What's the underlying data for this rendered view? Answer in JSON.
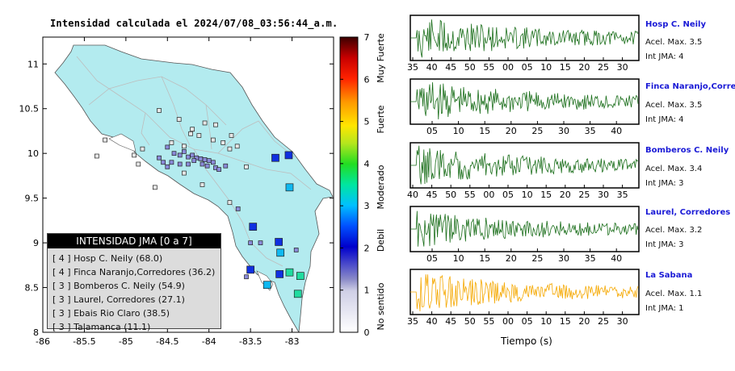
{
  "title": "Intensidad calculada el 2024/07/08_03:56:44_a.m.",
  "map": {
    "xticks": [
      "-86",
      "-85.5",
      "-85",
      "-84.5",
      "-84",
      "-83.5",
      "-83"
    ],
    "yticks": [
      "11",
      "10.5",
      "10",
      "9.5",
      "9",
      "8.5",
      "8"
    ],
    "xlim": [
      -86,
      -82.5
    ],
    "ylim": [
      8,
      11.3
    ],
    "land_color": "#b3ebef",
    "stations": [
      {
        "lon": -84.6,
        "lat": 10.48,
        "c": 0
      },
      {
        "lon": -84.36,
        "lat": 10.38,
        "c": 0
      },
      {
        "lon": -84.05,
        "lat": 10.34,
        "c": 0
      },
      {
        "lon": -83.92,
        "lat": 10.32,
        "c": 0
      },
      {
        "lon": -84.2,
        "lat": 10.27,
        "c": 0
      },
      {
        "lon": -84.22,
        "lat": 10.22,
        "c": 0
      },
      {
        "lon": -84.12,
        "lat": 10.2,
        "c": 0
      },
      {
        "lon": -83.95,
        "lat": 10.15,
        "c": 0
      },
      {
        "lon": -84.45,
        "lat": 10.12,
        "c": 0
      },
      {
        "lon": -84.3,
        "lat": 10.08,
        "c": 0
      },
      {
        "lon": -83.83,
        "lat": 10.12,
        "c": 0
      },
      {
        "lon": -83.73,
        "lat": 10.2,
        "c": 0
      },
      {
        "lon": -83.75,
        "lat": 10.05,
        "c": 0
      },
      {
        "lon": -83.66,
        "lat": 10.08,
        "c": 0
      },
      {
        "lon": -84.8,
        "lat": 10.05,
        "c": 0
      },
      {
        "lon": -85.25,
        "lat": 10.15,
        "c": 0
      },
      {
        "lon": -84.5,
        "lat": 10.07,
        "c": 1
      },
      {
        "lon": -84.42,
        "lat": 10.0,
        "c": 1
      },
      {
        "lon": -84.35,
        "lat": 9.98,
        "c": 1
      },
      {
        "lon": -84.3,
        "lat": 10.02,
        "c": 1
      },
      {
        "lon": -84.25,
        "lat": 9.96,
        "c": 1
      },
      {
        "lon": -84.2,
        "lat": 9.98,
        "c": 1
      },
      {
        "lon": -84.15,
        "lat": 9.95,
        "c": 1
      },
      {
        "lon": -84.1,
        "lat": 9.94,
        "c": 1
      },
      {
        "lon": -84.05,
        "lat": 9.93,
        "c": 1
      },
      {
        "lon": -84.0,
        "lat": 9.92,
        "c": 1
      },
      {
        "lon": -83.95,
        "lat": 9.9,
        "c": 1
      },
      {
        "lon": -84.08,
        "lat": 9.88,
        "c": 1
      },
      {
        "lon": -84.02,
        "lat": 9.86,
        "c": 1
      },
      {
        "lon": -84.18,
        "lat": 9.92,
        "c": 1
      },
      {
        "lon": -84.25,
        "lat": 9.88,
        "c": 1
      },
      {
        "lon": -84.35,
        "lat": 9.88,
        "c": 1
      },
      {
        "lon": -84.45,
        "lat": 9.9,
        "c": 1
      },
      {
        "lon": -83.92,
        "lat": 9.84,
        "c": 1
      },
      {
        "lon": -83.88,
        "lat": 9.82,
        "c": 1
      },
      {
        "lon": -83.8,
        "lat": 9.86,
        "c": 1
      },
      {
        "lon": -84.6,
        "lat": 9.95,
        "c": 1
      },
      {
        "lon": -84.55,
        "lat": 9.9,
        "c": 1
      },
      {
        "lon": -84.5,
        "lat": 9.85,
        "c": 1
      },
      {
        "lon": -84.85,
        "lat": 9.88,
        "c": 0
      },
      {
        "lon": -84.9,
        "lat": 9.98,
        "c": 0
      },
      {
        "lon": -85.35,
        "lat": 9.97,
        "c": 0
      },
      {
        "lon": -84.65,
        "lat": 9.62,
        "c": 0
      },
      {
        "lon": -84.08,
        "lat": 9.65,
        "c": 0
      },
      {
        "lon": -83.2,
        "lat": 9.95,
        "c": 2
      },
      {
        "lon": -83.04,
        "lat": 9.98,
        "c": 2
      },
      {
        "lon": -83.03,
        "lat": 9.62,
        "c": 3
      },
      {
        "lon": -83.55,
        "lat": 9.85,
        "c": 0
      },
      {
        "lon": -84.3,
        "lat": 9.78,
        "c": 0
      },
      {
        "lon": -83.65,
        "lat": 9.38,
        "c": 1
      },
      {
        "lon": -83.75,
        "lat": 9.45,
        "c": 0
      },
      {
        "lon": -83.47,
        "lat": 9.18,
        "c": 2
      },
      {
        "lon": -83.5,
        "lat": 9.0,
        "c": 1
      },
      {
        "lon": -83.38,
        "lat": 9.0,
        "c": 1
      },
      {
        "lon": -83.16,
        "lat": 9.01,
        "c": 2
      },
      {
        "lon": -83.14,
        "lat": 8.89,
        "c": 3
      },
      {
        "lon": -82.95,
        "lat": 8.92,
        "c": 1
      },
      {
        "lon": -83.5,
        "lat": 8.7,
        "c": 2
      },
      {
        "lon": -83.15,
        "lat": 8.65,
        "c": 2
      },
      {
        "lon": -83.03,
        "lat": 8.67,
        "c": 4
      },
      {
        "lon": -82.9,
        "lat": 8.63,
        "c": 4
      },
      {
        "lon": -83.3,
        "lat": 8.53,
        "c": 3
      },
      {
        "lon": -82.93,
        "lat": 8.43,
        "c": 4
      },
      {
        "lon": -83.55,
        "lat": 8.62,
        "c": 1
      }
    ]
  },
  "colorbar": {
    "ticks": [
      "0",
      "1",
      "2",
      "3",
      "4",
      "5",
      "6",
      "7"
    ],
    "labels": [
      "No sentido",
      "Debil",
      "Moderado",
      "Fuerte",
      "Muy Fuerte"
    ]
  },
  "legend": {
    "header": "INTENSIDAD JMA [0 a 7]",
    "rows": [
      "[ 4 ]  Hosp C. Neily (68.0)",
      "[ 4 ]  Finca Naranjo,Corredores (36.2)",
      "[ 3 ]  Bomberos C. Neily (54.9)",
      "[ 3 ]  Laurel, Corredores (27.1)",
      "[ 3 ]  Ebais Rio Claro (38.5)",
      "[ 3 ]  Talamanca (11.1)"
    ]
  },
  "chart_data": [
    {
      "type": "map",
      "title": "Intensidad calculada el 2024/07/08_03:56:44_a.m.",
      "xlim": [
        -86,
        -82.5
      ],
      "ylim": [
        8,
        11.3
      ],
      "colorbar": {
        "range": [
          0,
          7
        ],
        "labels": [
          "No sentido",
          "Debil",
          "Moderado",
          "Fuerte",
          "Muy Fuerte"
        ]
      },
      "legend": [
        {
          "intensity": 4,
          "name": "Hosp C. Neily",
          "value": 68.0
        },
        {
          "intensity": 4,
          "name": "Finca Naranjo,Corredores",
          "value": 36.2
        },
        {
          "intensity": 3,
          "name": "Bomberos C. Neily",
          "value": 54.9
        },
        {
          "intensity": 3,
          "name": "Laurel, Corredores",
          "value": 27.1
        },
        {
          "intensity": 3,
          "name": "Ebais Rio Claro",
          "value": 38.5
        },
        {
          "intensity": 3,
          "name": "Talamanca",
          "value": 11.1
        }
      ]
    },
    {
      "type": "line",
      "xlabel": "Tiempo (s)",
      "series": [
        {
          "name": "Hosp C. Neily",
          "acel_max": 3.5,
          "int_jma": 4,
          "color": "#1a6e1a"
        },
        {
          "name": "Finca Naranjo,Corredores",
          "acel_max": 3.5,
          "int_jma": 4,
          "color": "#1a6e1a"
        },
        {
          "name": "Bomberos C. Neily",
          "acel_max": 3.4,
          "int_jma": 3,
          "color": "#1a6e1a"
        },
        {
          "name": "Laurel, Corredores",
          "acel_max": 3.2,
          "int_jma": 3,
          "color": "#1a6e1a"
        },
        {
          "name": "La Sabana",
          "acel_max": 1.1,
          "int_jma": 1,
          "color": "#f5a800"
        }
      ]
    }
  ],
  "seismo": {
    "xlabel": "Tiempo (s)",
    "traces": [
      {
        "name": "Hosp C. Neily",
        "acel": "Acel. Max. 3.5",
        "jma": "Int JMA: 4",
        "ticks": [
          "35",
          "40",
          "45",
          "50",
          "55",
          "00",
          "05",
          "10",
          "15",
          "20",
          "25",
          "30"
        ],
        "color": "#1a6e1a",
        "amp": 1.0
      },
      {
        "name": "Finca Naranjo,Corredores",
        "acel": "Acel. Max. 3.5",
        "jma": "Int JMA: 4",
        "ticks": [
          "05",
          "10",
          "15",
          "20",
          "25",
          "30",
          "35",
          "40"
        ],
        "color": "#1a6e1a",
        "amp": 1.0
      },
      {
        "name": "Bomberos C. Neily",
        "acel": "Acel. Max. 3.4",
        "jma": "Int JMA: 3",
        "ticks": [
          "40",
          "45",
          "50",
          "55",
          "00",
          "05",
          "10",
          "15",
          "20",
          "25",
          "30",
          "35"
        ],
        "color": "#1a6e1a",
        "amp": 0.9
      },
      {
        "name": "Laurel, Corredores",
        "acel": "Acel. Max. 3.2",
        "jma": "Int JMA: 3",
        "ticks": [
          "05",
          "10",
          "15",
          "20",
          "25",
          "30",
          "35",
          "40"
        ],
        "color": "#1a6e1a",
        "amp": 0.85
      },
      {
        "name": "La Sabana",
        "acel": "Acel. Max. 1.1",
        "jma": "Int JMA: 1",
        "ticks": [
          "35",
          "40",
          "45",
          "50",
          "55",
          "00",
          "05",
          "10",
          "15",
          "20",
          "25",
          "30"
        ],
        "color": "#f5a800",
        "amp": 0.9
      }
    ]
  }
}
